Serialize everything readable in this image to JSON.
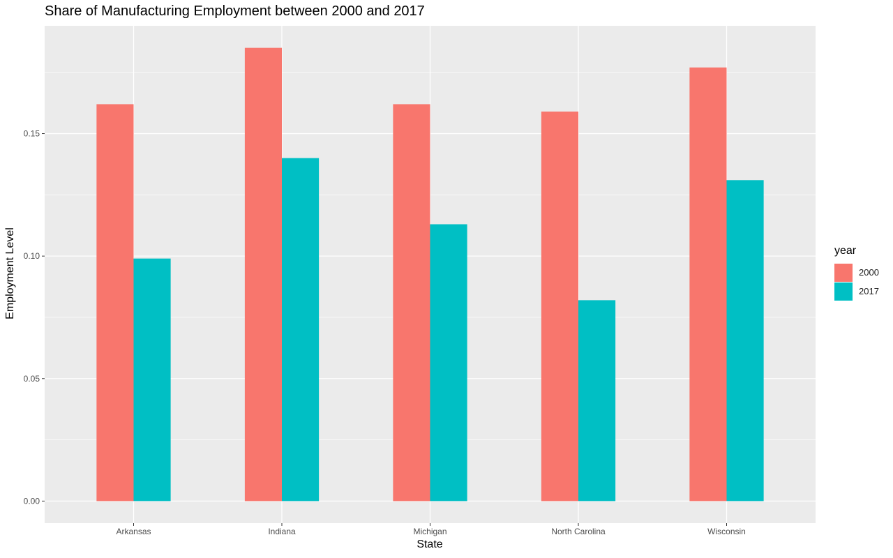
{
  "chart_data": {
    "type": "bar",
    "title": "Share of Manufacturing Employment between 2000 and 2017",
    "xlabel": "State",
    "ylabel": "Employment Level",
    "categories": [
      "Arkansas",
      "Indiana",
      "Michigan",
      "North Carolina",
      "Wisconsin"
    ],
    "series": [
      {
        "name": "2000",
        "color": "#F8766D",
        "values": [
          0.162,
          0.185,
          0.162,
          0.159,
          0.177
        ]
      },
      {
        "name": "2017",
        "color": "#00BFC4",
        "values": [
          0.099,
          0.14,
          0.113,
          0.082,
          0.131
        ]
      }
    ],
    "yticks": [
      "0.00",
      "0.05",
      "0.10",
      "0.15"
    ],
    "ylim": [
      -0.009,
      0.194
    ],
    "grid": true,
    "legend": {
      "title": "year",
      "position": "right"
    },
    "panel_background": "#EBEBEB",
    "gridline_color": "#FFFFFF"
  }
}
